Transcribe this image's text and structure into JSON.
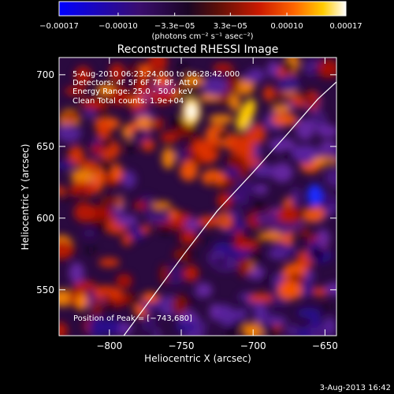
{
  "chart_data": {
    "type": "heatmap",
    "title": "Reconstructed RHESSI Image",
    "xlabel": "Heliocentric X (arcsec)",
    "ylabel": "Heliocentric Y (arcsec)",
    "xlim": [
      -835,
      -642
    ],
    "ylim": [
      518,
      712
    ],
    "xticks": [
      -800,
      -750,
      -700,
      -650
    ],
    "yticks": [
      550,
      600,
      650,
      700
    ],
    "xtick_labels": [
      "−800",
      "−750",
      "−700",
      "−650"
    ],
    "ytick_labels": [
      "550",
      "600",
      "650",
      "700"
    ],
    "colorbar": {
      "min": -0.00017,
      "max": 0.00017,
      "ticks": [
        -0.00017,
        -0.0001,
        -3.3e-05,
        3.3e-05,
        0.0001,
        0.00017
      ],
      "tick_labels": [
        "−0.00017",
        "−0.00010",
        "−3.3e−05",
        "3.3e−05",
        "0.00010",
        "0.00017"
      ],
      "unit_label": "(photons cm⁻² s⁻¹ asec⁻²)",
      "colors": [
        "#0000ff",
        "#3a0d6e",
        "#1a0524",
        "#5a0f08",
        "#cc1a00",
        "#ff6600",
        "#ffcc00",
        "#ffffff"
      ]
    },
    "annotations": [
      "5-Aug-2010 06:23:24.000 to 06:28:42.000",
      "Detectors: 4F 5F 6F 7F 8F, Att 0",
      "Energy Range: 25.0 - 50.0 keV",
      "Clean    Total counts: 1.9e+04"
    ],
    "peak_label": "Position of Peak = [−743,680]",
    "peak_position": [
      -743,
      680
    ],
    "limb_curve": [
      [
        -790,
        518
      ],
      [
        -770,
        545
      ],
      [
        -748,
        575
      ],
      [
        -725,
        605
      ],
      [
        -700,
        632
      ],
      [
        -675,
        660
      ],
      [
        -655,
        683
      ],
      [
        -642,
        695
      ]
    ]
  },
  "footer": {
    "date": "3-Aug-2013 16:42"
  }
}
